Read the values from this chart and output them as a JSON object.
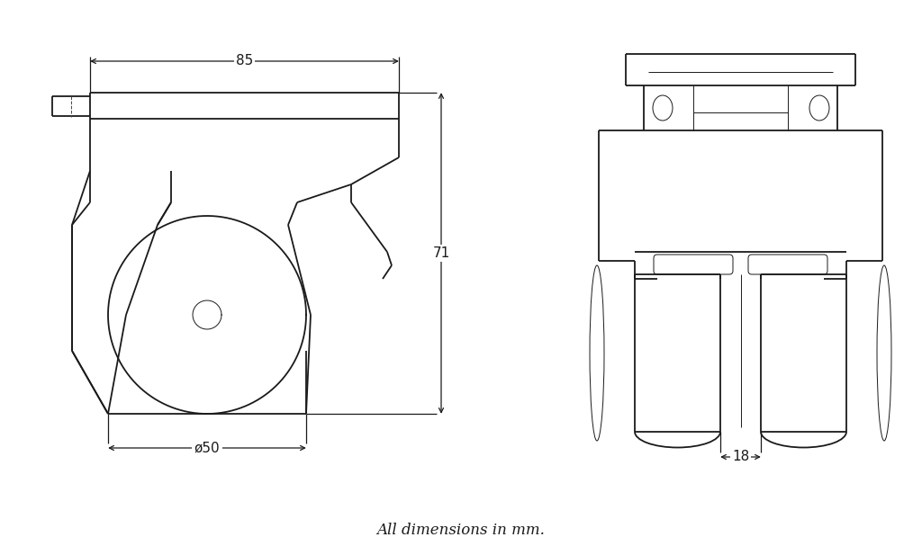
{
  "bg_color": "#ffffff",
  "line_color": "#1a1a1a",
  "lw_main": 1.3,
  "lw_thin": 0.7,
  "lw_dim": 0.9,
  "dim85": "85",
  "dim71": "71",
  "dim50": "ø50",
  "dim18": "18",
  "footnote": "All dimensions in mm.",
  "footnote_fontsize": 12,
  "dim_fontsize": 11,
  "figw": 10.24,
  "figh": 6.17,
  "dpi": 100
}
